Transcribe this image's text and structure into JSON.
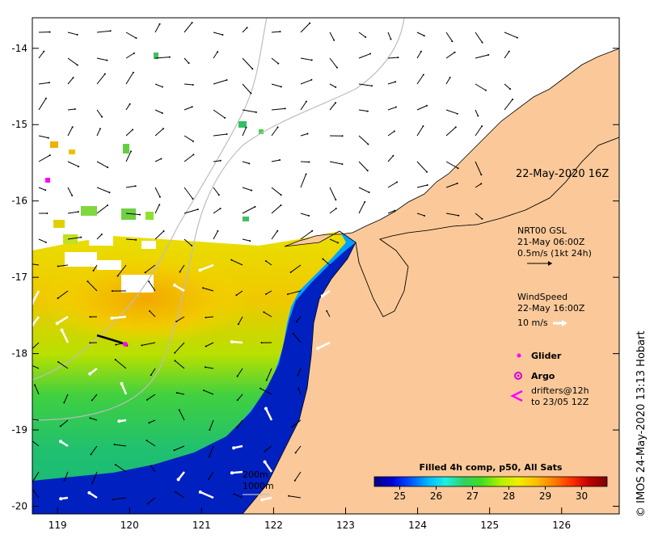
{
  "map": {
    "lon_range": [
      118.65,
      126.8
    ],
    "lat_range": [
      -20.1,
      -13.6
    ],
    "lon_ticks": [
      119,
      120,
      121,
      122,
      123,
      124,
      125,
      126
    ],
    "lat_ticks": [
      -14,
      -15,
      -16,
      -17,
      -18,
      -19,
      -20
    ],
    "land_color": "#fbc999",
    "ocean_nodata_color": "#ffffff"
  },
  "annotations": {
    "date_stamp": "22-May-2020 16Z",
    "current_legend": {
      "line1": "NRT00 GSL",
      "line2": "21-May 06:00Z",
      "line3": "0.5m/s (1kt 24h)"
    },
    "wind_legend": {
      "line1": "WindSpeed",
      "line2": "22-May 16:00Z",
      "line3": "10 m/s"
    },
    "glider_label": "Glider",
    "argo_label": "Argo",
    "drifters_line1": "drifters@12h",
    "drifters_line2": "to 23/05 12Z",
    "contour_200": "200m",
    "contour_1000": "1000m",
    "credit": "© IMOS 24-May-2020 13:13 Hobart"
  },
  "colorbar": {
    "title": "Filled 4h comp, p50, All Sats",
    "ticks": [
      25,
      26,
      27,
      28,
      29,
      30
    ],
    "range": [
      24.3,
      30.7
    ],
    "stops": [
      "#00007f",
      "#0000d8",
      "#0050ff",
      "#00b8ff",
      "#20f0e0",
      "#30d060",
      "#40e020",
      "#b0f000",
      "#f0f000",
      "#ffc000",
      "#ff8000",
      "#ff3000",
      "#c00000",
      "#7f0000"
    ]
  },
  "colors": {
    "glider": "#ff00ff",
    "argo": "#d400d4",
    "drifter": "#ff00ff",
    "contour": "#bdbdbd"
  }
}
